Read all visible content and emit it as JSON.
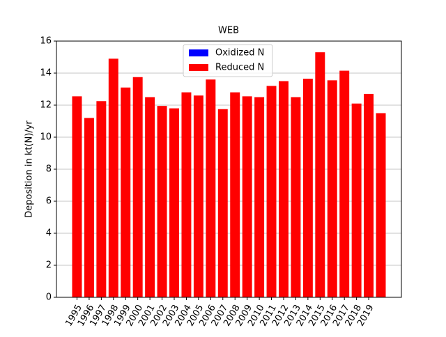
{
  "chart_data": {
    "type": "bar",
    "stacked": true,
    "title": "WEB",
    "y_label": "Deposition in kt(N)/yr",
    "categories": [
      "1995",
      "1996",
      "1997",
      "1998",
      "1999",
      "2000",
      "2001",
      "2002",
      "2003",
      "2004",
      "2005",
      "2006",
      "2007",
      "2008",
      "2009",
      "2010",
      "2011",
      "2012",
      "2013",
      "2014",
      "2015",
      "2016",
      "2017",
      "2018",
      "2019",
      null
    ],
    "series": [
      {
        "name": "Oxidized N",
        "color": "#0000ff",
        "values": [
          0,
          0,
          0,
          0,
          0,
          0,
          0,
          0,
          0,
          0,
          0,
          0,
          0,
          0,
          0,
          0,
          0,
          0,
          0,
          0,
          0,
          0,
          0,
          0,
          0,
          0
        ]
      },
      {
        "name": "Reduced N",
        "color": "#ff0000",
        "values": [
          12.55,
          11.2,
          12.25,
          14.9,
          13.1,
          13.75,
          12.5,
          11.95,
          11.8,
          12.8,
          12.6,
          13.6,
          11.75,
          12.8,
          12.55,
          12.5,
          13.2,
          13.5,
          12.5,
          13.65,
          15.3,
          13.55,
          14.15,
          12.1,
          12.7,
          11.5
        ]
      }
    ],
    "ylim": [
      0,
      16
    ],
    "yticks": [
      0,
      2,
      4,
      6,
      8,
      10,
      12,
      14,
      16
    ],
    "grid": "y",
    "legend": "upper center"
  }
}
